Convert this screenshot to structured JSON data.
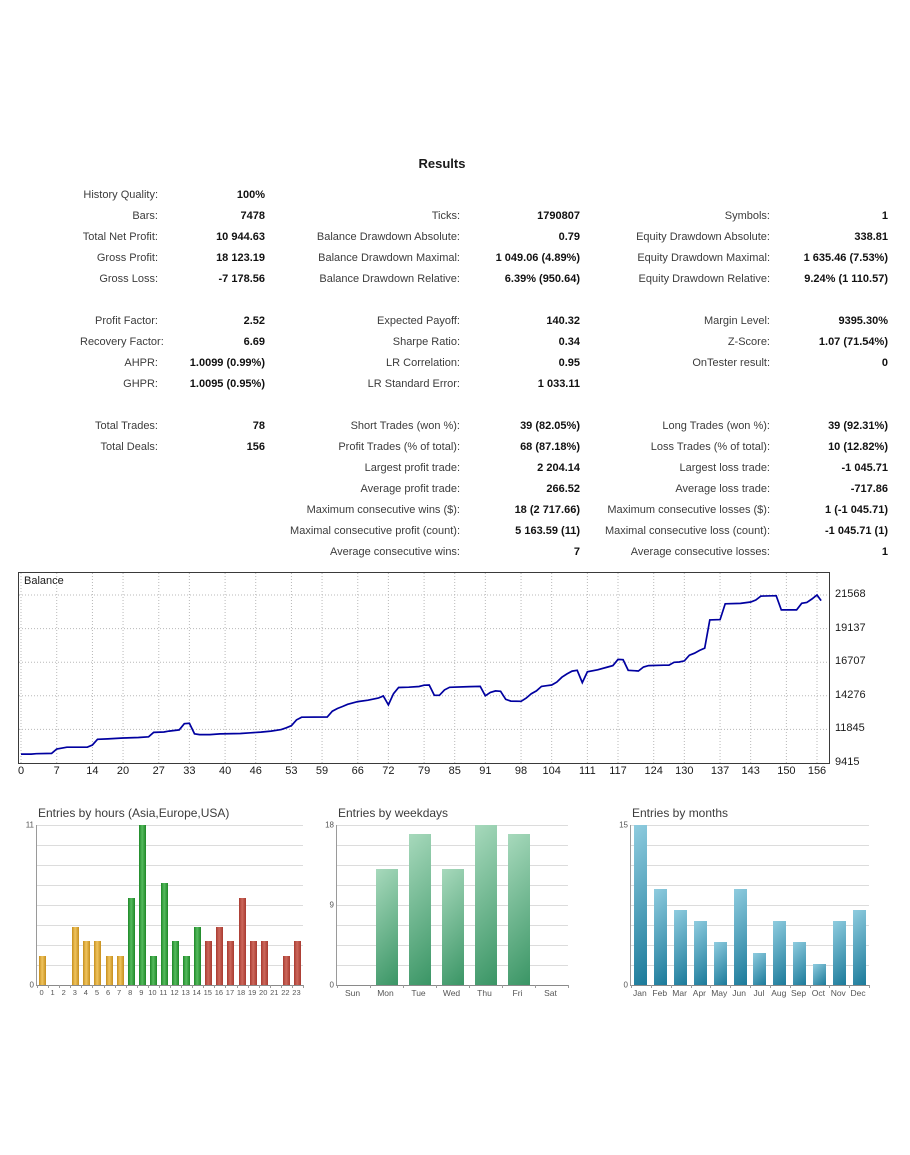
{
  "title": "Results",
  "stats": {
    "rows": [
      [
        "History Quality:",
        "100%",
        "",
        "",
        "",
        ""
      ],
      [
        "Bars:",
        "7478",
        "Ticks:",
        "1790807",
        "Symbols:",
        "1"
      ],
      [
        "Total Net Profit:",
        "10 944.63",
        "Balance Drawdown Absolute:",
        "0.79",
        "Equity Drawdown Absolute:",
        "338.81"
      ],
      [
        "Gross Profit:",
        "18 123.19",
        "Balance Drawdown Maximal:",
        "1 049.06 (4.89%)",
        "Equity Drawdown Maximal:",
        "1 635.46 (7.53%)"
      ],
      [
        "Gross Loss:",
        "-7 178.56",
        "Balance Drawdown Relative:",
        "6.39% (950.64)",
        "Equity Drawdown Relative:",
        "9.24% (1 110.57)"
      ],
      [],
      [
        "Profit Factor:",
        "2.52",
        "Expected Payoff:",
        "140.32",
        "Margin Level:",
        "9395.30%"
      ],
      [
        "Recovery Factor:",
        "6.69",
        "Sharpe Ratio:",
        "0.34",
        "Z-Score:",
        "1.07 (71.54%)"
      ],
      [
        "AHPR:",
        "1.0099 (0.99%)",
        "LR Correlation:",
        "0.95",
        "OnTester result:",
        "0"
      ],
      [
        "GHPR:",
        "1.0095 (0.95%)",
        "LR Standard Error:",
        "1 033.11",
        "",
        ""
      ],
      [],
      [
        "Total Trades:",
        "78",
        "Short Trades (won %):",
        "39 (82.05%)",
        "Long Trades (won %):",
        "39 (92.31%)"
      ],
      [
        "Total Deals:",
        "156",
        "Profit Trades (% of total):",
        "68 (87.18%)",
        "Loss Trades (% of total):",
        "10 (12.82%)"
      ],
      [
        "",
        "",
        "Largest profit trade:",
        "2 204.14",
        "Largest loss trade:",
        "-1 045.71"
      ],
      [
        "",
        "",
        "Average profit trade:",
        "266.52",
        "Average loss trade:",
        "-717.86"
      ],
      [
        "",
        "",
        "Maximum consecutive wins ($):",
        "18 (2 717.66)",
        "Maximum consecutive losses ($):",
        "1 (-1 045.71)"
      ],
      [
        "",
        "",
        "Maximal consecutive profit (count):",
        "5 163.59 (11)",
        "Maximal consecutive loss (count):",
        "-1 045.71 (1)"
      ],
      [
        "",
        "",
        "Average consecutive wins:",
        "7",
        "Average consecutive losses:",
        "1"
      ]
    ]
  },
  "chart_data": [
    {
      "type": "line",
      "title": "Balance",
      "x_ticks": [
        0,
        7,
        14,
        20,
        27,
        33,
        40,
        46,
        53,
        59,
        66,
        72,
        79,
        85,
        91,
        98,
        104,
        111,
        117,
        124,
        130,
        137,
        143,
        150,
        156
      ],
      "y_ticks": [
        21568,
        19137,
        16707,
        14276,
        11845,
        9415
      ],
      "xlim": [
        0,
        158
      ],
      "ylim": [
        9415,
        23160
      ],
      "line_color": "#0000A0",
      "grid_color": "#b8b8b8",
      "points": [
        [
          0,
          10060
        ],
        [
          2,
          10060
        ],
        [
          3,
          10090
        ],
        [
          6,
          10110
        ],
        [
          7,
          10430
        ],
        [
          9,
          10560
        ],
        [
          13,
          10560
        ],
        [
          14,
          10720
        ],
        [
          15,
          11130
        ],
        [
          17,
          11160
        ],
        [
          20,
          11220
        ],
        [
          23,
          11260
        ],
        [
          25,
          11310
        ],
        [
          26,
          11630
        ],
        [
          28,
          11660
        ],
        [
          29,
          11720
        ],
        [
          31,
          11810
        ],
        [
          32,
          12260
        ],
        [
          33,
          12290
        ],
        [
          34,
          11530
        ],
        [
          35,
          11470
        ],
        [
          37,
          11470
        ],
        [
          39,
          11520
        ],
        [
          43,
          11550
        ],
        [
          45,
          11600
        ],
        [
          47,
          11650
        ],
        [
          49,
          11720
        ],
        [
          51,
          11830
        ],
        [
          52,
          11960
        ],
        [
          53,
          12110
        ],
        [
          54,
          12530
        ],
        [
          55,
          12730
        ],
        [
          60,
          12740
        ],
        [
          61,
          13160
        ],
        [
          62,
          13360
        ],
        [
          63,
          13500
        ],
        [
          64,
          13660
        ],
        [
          66,
          13860
        ],
        [
          68,
          13960
        ],
        [
          70,
          14110
        ],
        [
          71,
          14260
        ],
        [
          72,
          13620
        ],
        [
          73,
          14430
        ],
        [
          74,
          14880
        ],
        [
          76,
          14900
        ],
        [
          78,
          14950
        ],
        [
          79,
          15040
        ],
        [
          80,
          15060
        ],
        [
          81,
          14310
        ],
        [
          82,
          14310
        ],
        [
          83,
          14700
        ],
        [
          84,
          14890
        ],
        [
          88,
          14940
        ],
        [
          90,
          14960
        ],
        [
          91,
          14280
        ],
        [
          92,
          14520
        ],
        [
          93,
          14630
        ],
        [
          94,
          14600
        ],
        [
          95,
          14020
        ],
        [
          96,
          13890
        ],
        [
          98,
          13880
        ],
        [
          99,
          14110
        ],
        [
          100,
          14430
        ],
        [
          101,
          14630
        ],
        [
          102,
          14960
        ],
        [
          103,
          15010
        ],
        [
          104,
          15060
        ],
        [
          105,
          15270
        ],
        [
          106,
          15620
        ],
        [
          107,
          15860
        ],
        [
          108,
          16060
        ],
        [
          109,
          16120
        ],
        [
          110,
          15230
        ],
        [
          111,
          16010
        ],
        [
          113,
          16160
        ],
        [
          115,
          16360
        ],
        [
          116,
          16460
        ],
        [
          117,
          16910
        ],
        [
          118,
          16890
        ],
        [
          119,
          16120
        ],
        [
          121,
          16070
        ],
        [
          122,
          16360
        ],
        [
          123,
          16460
        ],
        [
          126,
          16490
        ],
        [
          127,
          16500
        ],
        [
          128,
          16700
        ],
        [
          129,
          16720
        ],
        [
          130,
          16800
        ],
        [
          131,
          17210
        ],
        [
          132,
          17360
        ],
        [
          133,
          17560
        ],
        [
          134,
          17720
        ],
        [
          135,
          19770
        ],
        [
          137,
          19790
        ],
        [
          138,
          20930
        ],
        [
          141,
          20960
        ],
        [
          143,
          21060
        ],
        [
          144,
          21210
        ],
        [
          145,
          21490
        ],
        [
          148,
          21520
        ],
        [
          149,
          20490
        ],
        [
          152,
          20490
        ],
        [
          153,
          20970
        ],
        [
          154,
          21030
        ],
        [
          155,
          21280
        ],
        [
          156,
          21570
        ],
        [
          156.8,
          21160
        ]
      ]
    },
    {
      "type": "bar",
      "title": "Entries by hours (Asia,Europe,USA)",
      "categories": [
        "0",
        "1",
        "2",
        "3",
        "4",
        "5",
        "6",
        "7",
        "8",
        "9",
        "10",
        "11",
        "12",
        "13",
        "14",
        "15",
        "16",
        "17",
        "18",
        "19",
        "20",
        "21",
        "22",
        "23"
      ],
      "values": [
        2,
        0,
        0,
        4,
        3,
        3,
        2,
        2,
        6,
        11,
        2,
        7,
        3,
        2,
        4,
        3,
        4,
        3,
        6,
        3,
        3,
        0,
        2,
        3
      ],
      "ylim": [
        0,
        11
      ],
      "ticks": [
        11,
        0
      ],
      "groups": [
        "asia",
        "asia",
        "asia",
        "asia",
        "asia",
        "asia",
        "asia",
        "asia",
        "europe",
        "europe",
        "europe",
        "europe",
        "europe",
        "europe",
        "europe",
        "usa",
        "usa",
        "usa",
        "usa",
        "usa",
        "usa",
        "usa",
        "usa",
        "usa"
      ],
      "group_colors": {
        "asia": {
          "dark": "#C68F1E",
          "light": "#F0C45E"
        },
        "europe": {
          "dark": "#1E8827",
          "light": "#55BA5E"
        },
        "usa": {
          "dark": "#A83A30",
          "light": "#CC685C"
        }
      }
    },
    {
      "type": "bar",
      "title": "Entries by weekdays",
      "categories": [
        "Sun",
        "Mon",
        "Tue",
        "Wed",
        "Thu",
        "Fri",
        "Sat"
      ],
      "values": [
        0,
        13,
        17,
        13,
        18,
        17,
        0
      ],
      "ylim": [
        0,
        18
      ],
      "ticks": [
        18,
        9,
        0
      ],
      "bar_gradient": {
        "light": "#A7D9BC",
        "dark": "#3A9565"
      }
    },
    {
      "type": "bar",
      "title": "Entries by months",
      "categories": [
        "Jan",
        "Feb",
        "Mar",
        "Apr",
        "May",
        "Jun",
        "Jul",
        "Aug",
        "Sep",
        "Oct",
        "Nov",
        "Dec"
      ],
      "values": [
        15,
        9,
        7,
        6,
        4,
        9,
        3,
        6,
        4,
        2,
        6,
        7
      ],
      "ylim": [
        0,
        15
      ],
      "ticks": [
        15,
        0
      ],
      "bar_gradient": {
        "light": "#8FCCDF",
        "dark": "#1B7A9A"
      }
    }
  ]
}
